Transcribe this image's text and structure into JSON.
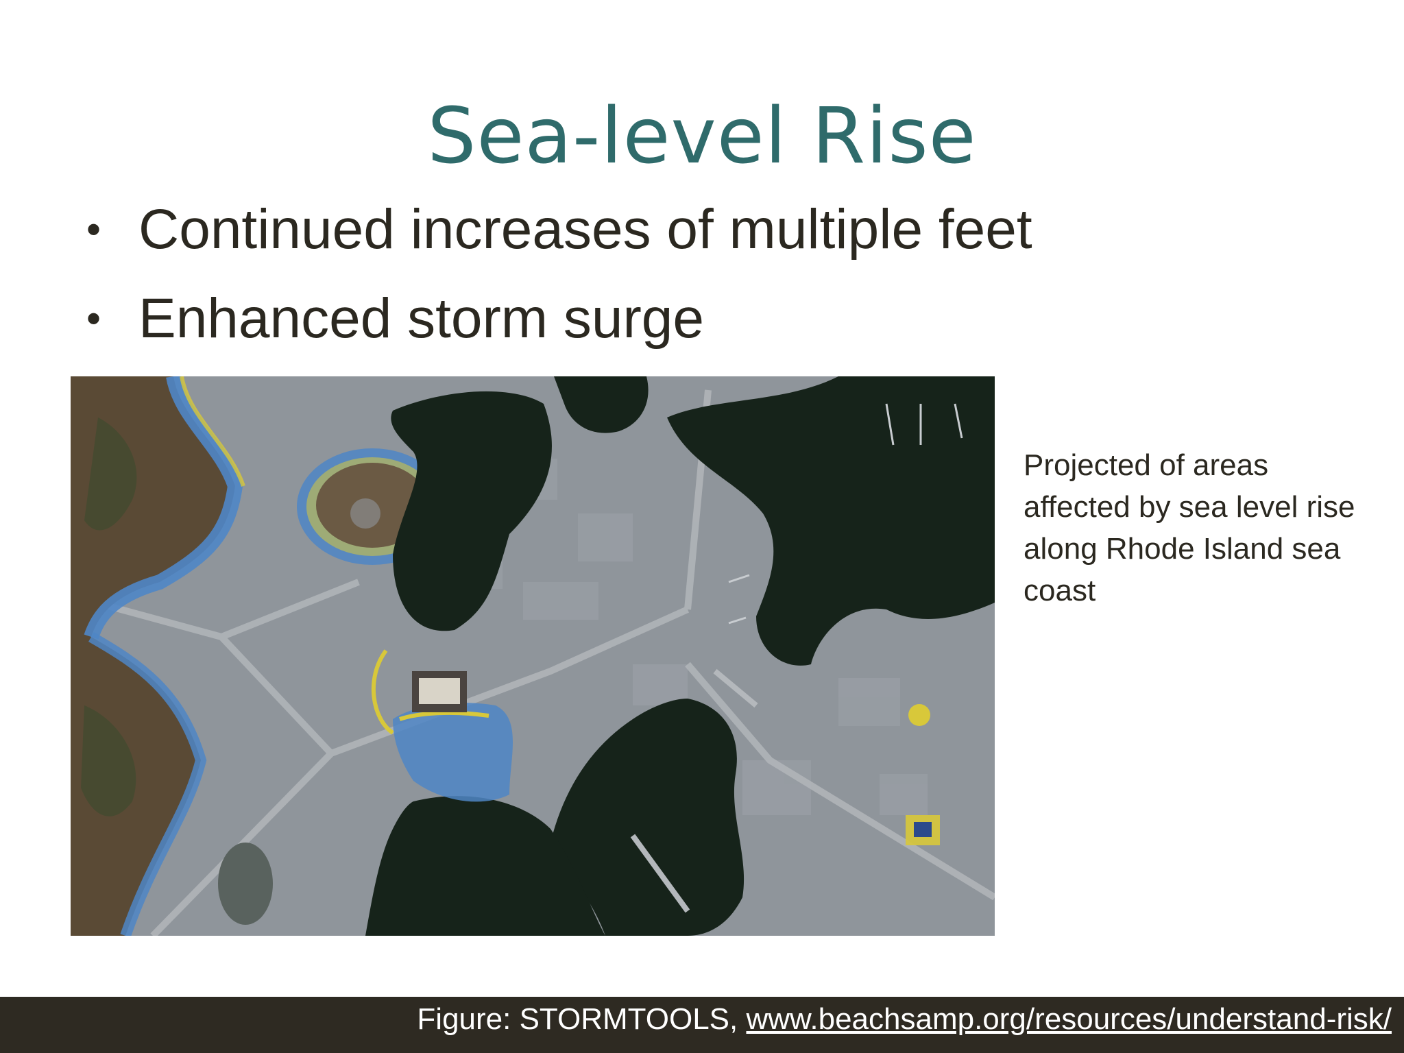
{
  "slide": {
    "title": "Sea-level Rise",
    "bullets": [
      "Continued increases of multiple feet",
      "Enhanced storm surge"
    ],
    "bullet_symbol": "•",
    "caption": "Projected of areas affected by sea level rise along Rhode Island sea coast",
    "footer": {
      "prefix": "Figure: STORMTOOLS, ",
      "link_text": "www.beachsamp.org/resources/understand-risk/"
    }
  },
  "colors": {
    "title": "#2f6b6b",
    "text": "#2b2820",
    "footer_bg": "#2e2a22",
    "water": "#16231a",
    "land": "#8e949a",
    "flood_blue": "#4f86c6",
    "flood_yellow": "#d8c83a",
    "vegetation": "#5a4a35"
  },
  "map_image": {
    "type": "aerial-photo",
    "legend": []
  }
}
